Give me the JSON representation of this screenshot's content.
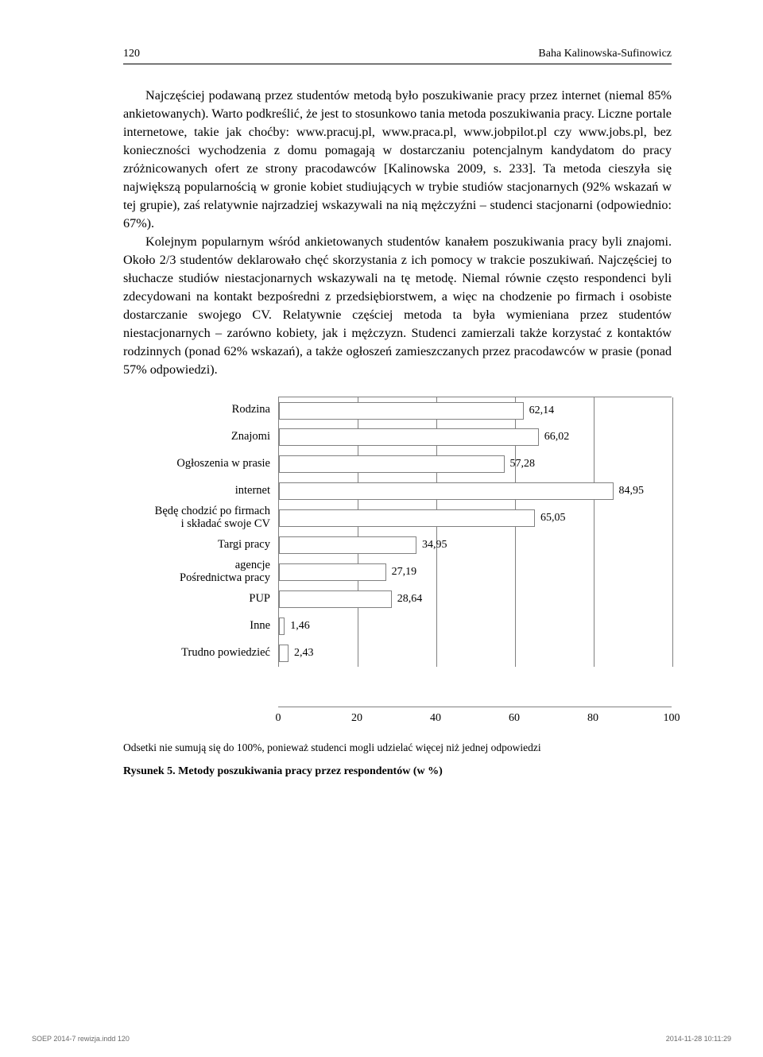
{
  "header": {
    "page_number": "120",
    "author": "Baha Kalinowska-Sufinowicz"
  },
  "body": {
    "p1": "Najczęściej podawaną przez studentów metodą było poszukiwanie pracy przez internet (niemal 85% ankietowanych). Warto podkreślić, że jest to stosunkowo tania metoda poszukiwania pracy. Liczne portale internetowe, takie jak choćby: www.pracuj.pl, www.praca.pl, www.jobpilot.pl czy www.jobs.pl, bez konieczności wychodzenia z domu pomagają w dostarczaniu potencjalnym kandydatom do pracy zróżnicowanych ofert ze strony pracodawców [Kalinowska 2009, s. 233]. Ta metoda cieszyła się największą popularnością w gronie kobiet studiujących w trybie studiów stacjonarnych (92% wskazań w tej grupie), zaś relatywnie najrzadziej wskazywali na nią mężczyźni – studenci stacjonarni (odpowiednio: 67%).",
    "p2": "Kolejnym popularnym wśród ankietowanych studentów kanałem poszukiwania pracy byli znajomi. Około 2/3 studentów deklarowało chęć skorzystania z ich pomocy w trakcie poszukiwań. Najczęściej to słuchacze studiów niestacjonarnych wskazywali na tę metodę. Niemal równie często respondenci byli zdecydowani na kontakt bezpośredni z przedsiębiorstwem, a więc na chodzenie po firmach i osobiste dostarczanie swojego CV. Relatywnie częściej metoda ta była wymieniana przez studentów niestacjonarnych – zarówno kobiety, jak i mężczyzn. Studenci zamierzali także korzystać z kontaktów rodzinnych (ponad 62% wskazań), a także ogłoszeń zamieszczanych przez pracodawców w prasie (ponad 57% odpowiedzi)."
  },
  "chart": {
    "type": "bar-horizontal",
    "xlim": [
      0,
      100
    ],
    "xtick_step": 20,
    "xticks": [
      "0",
      "20",
      "40",
      "60",
      "80",
      "100"
    ],
    "bar_fill": "#ffffff",
    "bar_border": "#808080",
    "grid_color": "#808080",
    "label_fontsize": 14.5,
    "value_fontsize": 14,
    "rows": [
      {
        "label": "Rodzina",
        "value_label": "62,14",
        "value": 62.14
      },
      {
        "label": "Znajomi",
        "value_label": "66,02",
        "value": 66.02
      },
      {
        "label": "Ogłoszenia w prasie",
        "value_label": "57,28",
        "value": 57.28
      },
      {
        "label": "internet",
        "value_label": "84,95",
        "value": 84.95
      },
      {
        "label": "Będę chodzić po firmach i składać swoje CV",
        "value_label": "65,05",
        "value": 65.05
      },
      {
        "label": "Targi pracy",
        "value_label": "34,95",
        "value": 34.95
      },
      {
        "label": "agencje Pośrednictwa pracy",
        "value_label": "27,19",
        "value": 27.19
      },
      {
        "label": "PUP",
        "value_label": "28,64",
        "value": 28.64
      },
      {
        "label": "Inne",
        "value_label": "1,46",
        "value": 1.46
      },
      {
        "label": "Trudno powiedzieć",
        "value_label": "2,43",
        "value": 2.43
      }
    ],
    "note": "Odsetki nie sumują się do 100%, ponieważ studenci mogli udzielać więcej niż jednej odpowiedzi",
    "caption": "Rysunek 5. Metody poszukiwania pracy przez respondentów (w %)"
  },
  "footer": {
    "left": "SOEP 2014-7 rewizja.indd   120",
    "right": "2014-11-28   10:11:29"
  }
}
